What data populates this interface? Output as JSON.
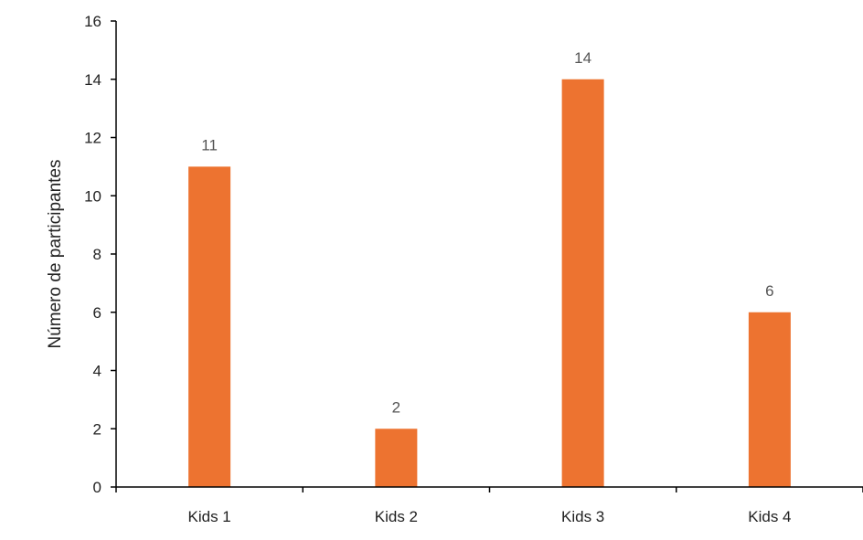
{
  "chart_data": {
    "type": "bar",
    "title": "",
    "xlabel": "",
    "ylabel": "Número de participantes",
    "categories": [
      "Kids 1",
      "Kids 2",
      "Kids 3",
      "Kids 4"
    ],
    "values": [
      11,
      2,
      14,
      6
    ],
    "data_labels": [
      "11",
      "2",
      "14",
      "6"
    ],
    "ylim": [
      0,
      16
    ],
    "yticks": [
      0,
      2,
      4,
      6,
      8,
      10,
      12,
      14,
      16
    ],
    "ytick_labels": [
      "0",
      "2",
      "4",
      "6",
      "8",
      "10",
      "12",
      "14",
      "16"
    ],
    "grid": false,
    "legend": "none",
    "bar_color": "#ED7330",
    "axis_color": "#000000"
  }
}
